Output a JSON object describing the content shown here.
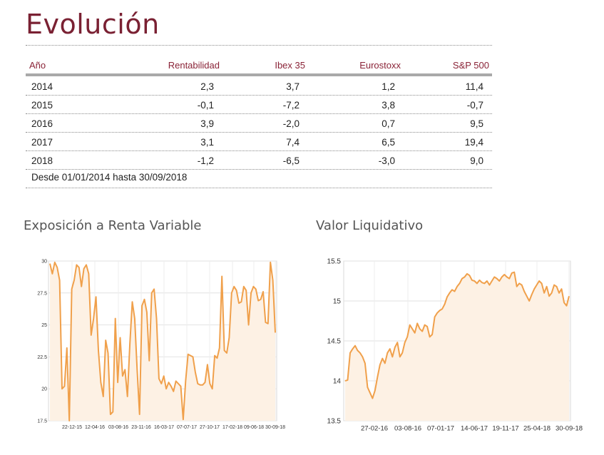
{
  "page_title": "Evolución",
  "table": {
    "headers": [
      "Año",
      "Rentabilidad",
      "Ibex 35",
      "Eurostoxx",
      "S&P 500"
    ],
    "rows": [
      [
        "2014",
        "2,3",
        "3,7",
        "1,2",
        "11,4"
      ],
      [
        "2015",
        "-0,1",
        "-7,2",
        "3,8",
        "-0,7"
      ],
      [
        "2016",
        "3,9",
        "-2,0",
        "0,7",
        "9,5"
      ],
      [
        "2017",
        "3,1",
        "7,4",
        "6,5",
        "19,4"
      ],
      [
        "2018",
        "-1,2",
        "-6,5",
        "-3,0",
        "9,0"
      ]
    ],
    "note": "Desde 01/01/2014 hasta 30/09/2018"
  },
  "colors": {
    "title": "#7a2133",
    "header_text": "#8a2337",
    "line": "#f0a04b",
    "fill": "#fdf1e4",
    "grid": "#e2e2e2"
  },
  "chart_data": [
    {
      "type": "area",
      "title": "Exposición a Renta Variable",
      "x_ticks": [
        "22-12-15",
        "12-04-16",
        "03-08-16",
        "23-11-16",
        "16-03-17",
        "07-07-17",
        "27-10-17",
        "17-02-18",
        "09-06-18",
        "30-09-18"
      ],
      "y_ticks": [
        "30",
        "27.5",
        "25",
        "22.5",
        "20",
        "17.5"
      ],
      "ylim": [
        17.5,
        30
      ],
      "values": [
        29.8,
        29.0,
        29.9,
        29.5,
        28.5,
        20.0,
        20.2,
        23.2,
        17.5,
        27.8,
        28.5,
        29.7,
        29.5,
        28.0,
        29.4,
        29.7,
        29.0,
        24.2,
        25.5,
        27.2,
        23.0,
        20.5,
        19.4,
        23.8,
        22.8,
        18.0,
        18.2,
        25.5,
        20.5,
        24.0,
        21.0,
        21.5,
        19.4,
        23.5,
        26.8,
        25.5,
        21.5,
        18.0,
        26.5,
        27.0,
        26.0,
        22.2,
        27.5,
        27.8,
        25.5,
        20.8,
        20.4,
        21.0,
        20.0,
        20.5,
        20.2,
        19.8,
        20.6,
        20.4,
        20.2,
        17.6,
        20.6,
        22.7,
        22.6,
        22.5,
        21.3,
        20.4,
        20.3,
        20.3,
        20.5,
        21.9,
        20.4,
        20.0,
        22.6,
        22.4,
        23.2,
        28.8,
        23.0,
        22.8,
        24.0,
        27.5,
        28.0,
        27.7,
        26.7,
        26.8,
        28.0,
        27.7,
        25.0,
        27.5,
        28.0,
        27.8,
        26.9,
        27.0,
        27.6,
        25.2,
        25.1,
        29.9,
        28.5,
        24.4
      ]
    },
    {
      "type": "area",
      "title": "Valor Liquidativo",
      "x_ticks": [
        "27-02-16",
        "03-08-16",
        "07-01-17",
        "14-06-17",
        "19-11-17",
        "25-04-18",
        "30-09-18"
      ],
      "y_ticks": [
        "15.5",
        "15",
        "14.5",
        "14",
        "13.5"
      ],
      "ylim": [
        13.5,
        15.5
      ],
      "values": [
        14.0,
        14.01,
        14.35,
        14.4,
        14.44,
        14.38,
        14.35,
        14.3,
        14.22,
        13.92,
        13.85,
        13.78,
        13.88,
        14.05,
        14.2,
        14.28,
        14.22,
        14.35,
        14.4,
        14.3,
        14.42,
        14.48,
        14.3,
        14.35,
        14.48,
        14.55,
        14.7,
        14.65,
        14.6,
        14.72,
        14.65,
        14.62,
        14.7,
        14.68,
        14.55,
        14.58,
        14.8,
        14.85,
        14.88,
        14.9,
        14.96,
        15.05,
        15.1,
        15.14,
        15.12,
        15.18,
        15.22,
        15.28,
        15.3,
        15.34,
        15.32,
        15.26,
        15.25,
        15.22,
        15.26,
        15.23,
        15.22,
        15.25,
        15.2,
        15.25,
        15.3,
        15.28,
        15.25,
        15.3,
        15.33,
        15.3,
        15.28,
        15.35,
        15.36,
        15.18,
        15.22,
        15.2,
        15.12,
        15.06,
        15.0,
        15.08,
        15.15,
        15.2,
        15.25,
        15.22,
        15.1,
        15.18,
        15.06,
        15.1,
        15.2,
        15.18,
        15.1,
        15.15,
        14.98,
        14.94,
        15.06
      ]
    }
  ]
}
